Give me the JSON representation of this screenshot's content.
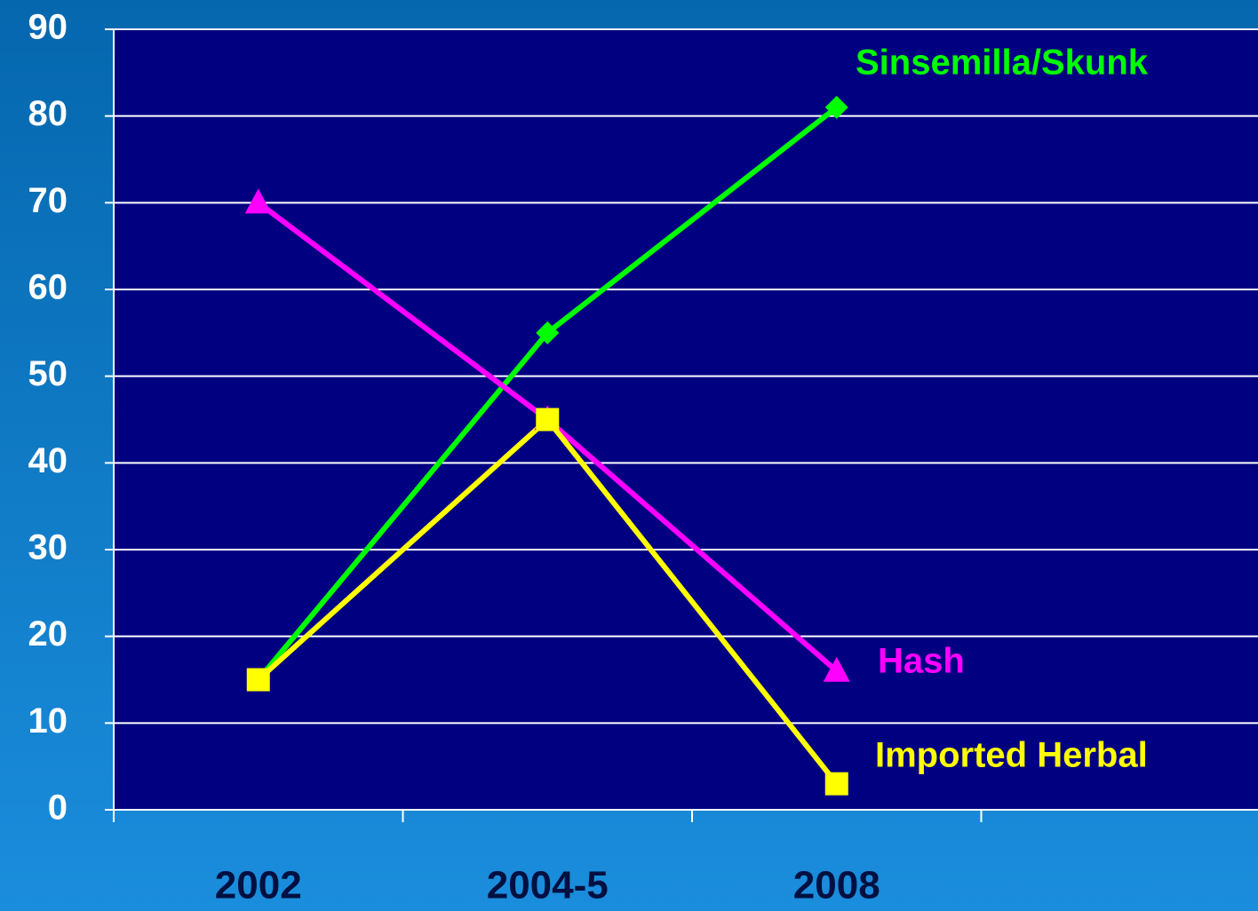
{
  "chart_data": {
    "type": "line",
    "categories": [
      "2002",
      "2004-5",
      "2008",
      null
    ],
    "series": [
      {
        "name": "Sinsemilla/Skunk",
        "color": "#00ff00",
        "marker": "diamond",
        "values": [
          15,
          55,
          81,
          null
        ]
      },
      {
        "name": "Hash",
        "color": "#ff00ff",
        "marker": "triangle",
        "values": [
          70,
          45,
          16,
          null
        ]
      },
      {
        "name": "Imported Herbal",
        "color": "#ffff00",
        "marker": "square",
        "values": [
          15,
          45,
          3,
          null
        ]
      }
    ],
    "ylim": [
      0,
      90
    ],
    "yticks": [
      0,
      10,
      20,
      30,
      40,
      50,
      60,
      70,
      80,
      90
    ],
    "grid": true
  }
}
